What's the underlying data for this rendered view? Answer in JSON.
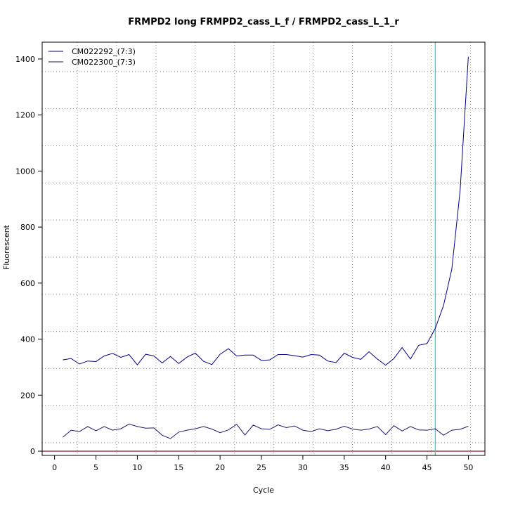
{
  "chart_data": {
    "type": "line",
    "title": "FRMPD2 long FRMPD2_cass_L_f / FRMPD2_cass_L_1_r",
    "xlabel": "Cycle",
    "ylabel": "Fluorescent",
    "xlim": [
      -1.5,
      52
    ],
    "ylim": [
      -15,
      1460
    ],
    "x_ticks": [
      0,
      5,
      10,
      15,
      20,
      25,
      30,
      35,
      40,
      45,
      50
    ],
    "y_ticks": [
      0,
      200,
      400,
      600,
      800,
      1000,
      1200,
      1400
    ],
    "grid": "dotted",
    "legend_position": "top-left",
    "threshold_line": {
      "y": 0,
      "color": "#8b1a1a"
    },
    "cycle_marker": {
      "x": 46,
      "color": "#00d8e8"
    },
    "x": [
      1,
      2,
      3,
      4,
      5,
      6,
      7,
      8,
      9,
      10,
      11,
      12,
      13,
      14,
      15,
      16,
      17,
      18,
      19,
      20,
      21,
      22,
      23,
      24,
      25,
      26,
      27,
      28,
      29,
      30,
      31,
      32,
      33,
      34,
      35,
      36,
      37,
      38,
      39,
      40,
      41,
      42,
      43,
      44,
      45,
      46,
      47,
      48,
      49,
      50
    ],
    "series": [
      {
        "name": "CM022292_(7:3)",
        "color": "#00008b",
        "values": [
          326,
          331,
          311,
          322,
          320,
          340,
          349,
          335,
          345,
          308,
          346,
          340,
          315,
          338,
          313,
          336,
          350,
          321,
          309,
          346,
          366,
          340,
          343,
          343,
          324,
          326,
          345,
          345,
          341,
          336,
          345,
          343,
          322,
          316,
          350,
          335,
          328,
          355,
          329,
          307,
          331,
          370,
          329,
          378,
          384,
          438,
          520,
          650,
          930,
          1408
        ]
      },
      {
        "name": "CM022300_(7:3)",
        "color": "#191970",
        "values": [
          50,
          75,
          70,
          88,
          73,
          88,
          75,
          80,
          97,
          88,
          82,
          83,
          57,
          45,
          68,
          75,
          80,
          88,
          79,
          66,
          76,
          96,
          58,
          93,
          80,
          78,
          94,
          84,
          90,
          75,
          70,
          80,
          73,
          78,
          89,
          79,
          75,
          79,
          88,
          59,
          91,
          72,
          88,
          76,
          75,
          80,
          57,
          75,
          78,
          89
        ]
      }
    ]
  }
}
